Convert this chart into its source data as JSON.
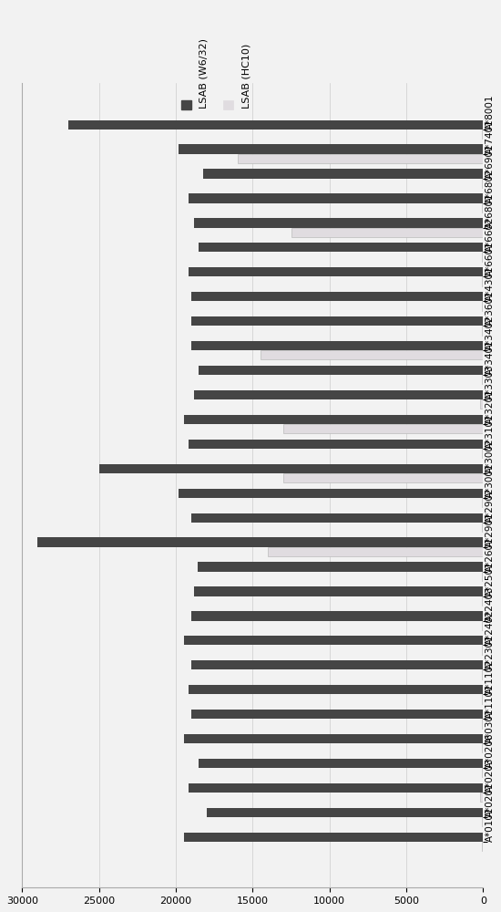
{
  "categories": [
    "A*0101",
    "A*0201",
    "A*0203",
    "A*0206",
    "A*0301",
    "A*1101",
    "A*1102",
    "A*2301",
    "A*2402",
    "A*2403",
    "A*2501",
    "A*2601",
    "A*2901",
    "A*2902",
    "A*3001",
    "A*3002",
    "A*3101",
    "A*3201",
    "A*3303",
    "A*3401",
    "A*3402",
    "A*3601",
    "A*4301",
    "A*6601",
    "A*6602",
    "A*6801",
    "A*6802",
    "A*6901",
    "A*7401",
    "A*8001"
  ],
  "w6_values": [
    19500,
    18000,
    19200,
    18500,
    19500,
    19000,
    19200,
    19000,
    19500,
    19000,
    18800,
    18600,
    29000,
    19000,
    19800,
    25000,
    19200,
    19500,
    18800,
    18500,
    19000,
    19000,
    19000,
    19200,
    18500,
    18800,
    19200,
    18200,
    19800,
    27000
  ],
  "hc10_values": [
    100,
    100,
    200,
    100,
    100,
    100,
    100,
    100,
    100,
    100,
    100,
    100,
    14000,
    100,
    100,
    13000,
    100,
    13000,
    200,
    100,
    14500,
    100,
    100,
    100,
    100,
    12500,
    100,
    100,
    16000,
    100
  ],
  "w6_color": "#454545",
  "hc10_color": "#e0dce0",
  "background_color": "#f2f2f2",
  "xlim": [
    0,
    30000
  ],
  "xticks": [
    0,
    5000,
    10000,
    15000,
    20000,
    25000,
    30000
  ],
  "legend_label_w6": "LSAB (W6/32)",
  "legend_label_hc10": "LSAB (HC10)"
}
